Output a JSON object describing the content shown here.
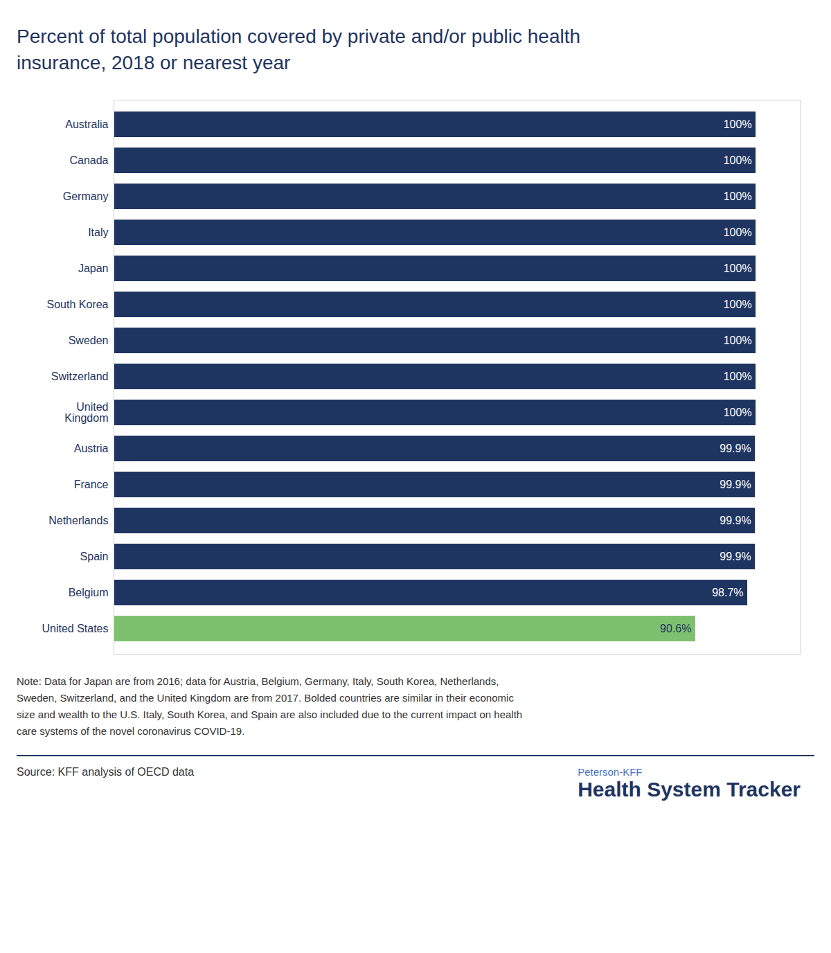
{
  "chart_data": {
    "type": "bar",
    "orientation": "horizontal",
    "title": "Percent of total population covered by private and/or public health\ninsurance, 2018 or nearest year",
    "categories": [
      "United States",
      "Belgium",
      "Spain",
      "Netherlands",
      "France",
      "Austria",
      "United\nKingdom",
      "Switzerland",
      "Sweden",
      "South Korea",
      "Japan",
      "Italy",
      "Germany",
      "Canada",
      "Australia"
    ],
    "values": [
      90.6,
      98.7,
      99.9,
      99.9,
      99.9,
      99.9,
      100,
      100,
      100,
      100,
      100,
      100,
      100,
      100,
      100
    ],
    "value_labels": [
      "90.6%",
      "98.7%",
      "99.9%",
      "99.9%",
      "99.9%",
      "99.9%",
      "100%",
      "100%",
      "100%",
      "100%",
      "100%",
      "100%",
      "100%",
      "100%",
      "100%"
    ],
    "data_labels": true,
    "colors": [
      "#7dc16e",
      "#1e3461",
      "#1e3461",
      "#1e3461",
      "#1e3461",
      "#1e3461",
      "#1e3461",
      "#1e3461",
      "#1e3461",
      "#1e3461",
      "#1e3461",
      "#1e3461",
      "#1e3461",
      "#1e3461",
      "#1e3461"
    ],
    "xlim": [
      0,
      107
    ],
    "tick_labels": "y",
    "grid": false,
    "note": "Note: Data for Japan are from 2016; data for Austria, Belgium, Germany, Italy, South Korea, Netherlands,\nSweden, Switzerland, and the United Kingdom are from 2017. Bolded countries are similar in their economic\nsize and wealth to the U.S. Italy, South Korea, and Spain are also included due to the current impact on health\ncare systems of the novel coronavirus COVID-19.",
    "source": "Source: KFF analysis of OECD data",
    "annotations": [
      "Peterson-KFF",
      "Health System Tracker"
    ]
  }
}
